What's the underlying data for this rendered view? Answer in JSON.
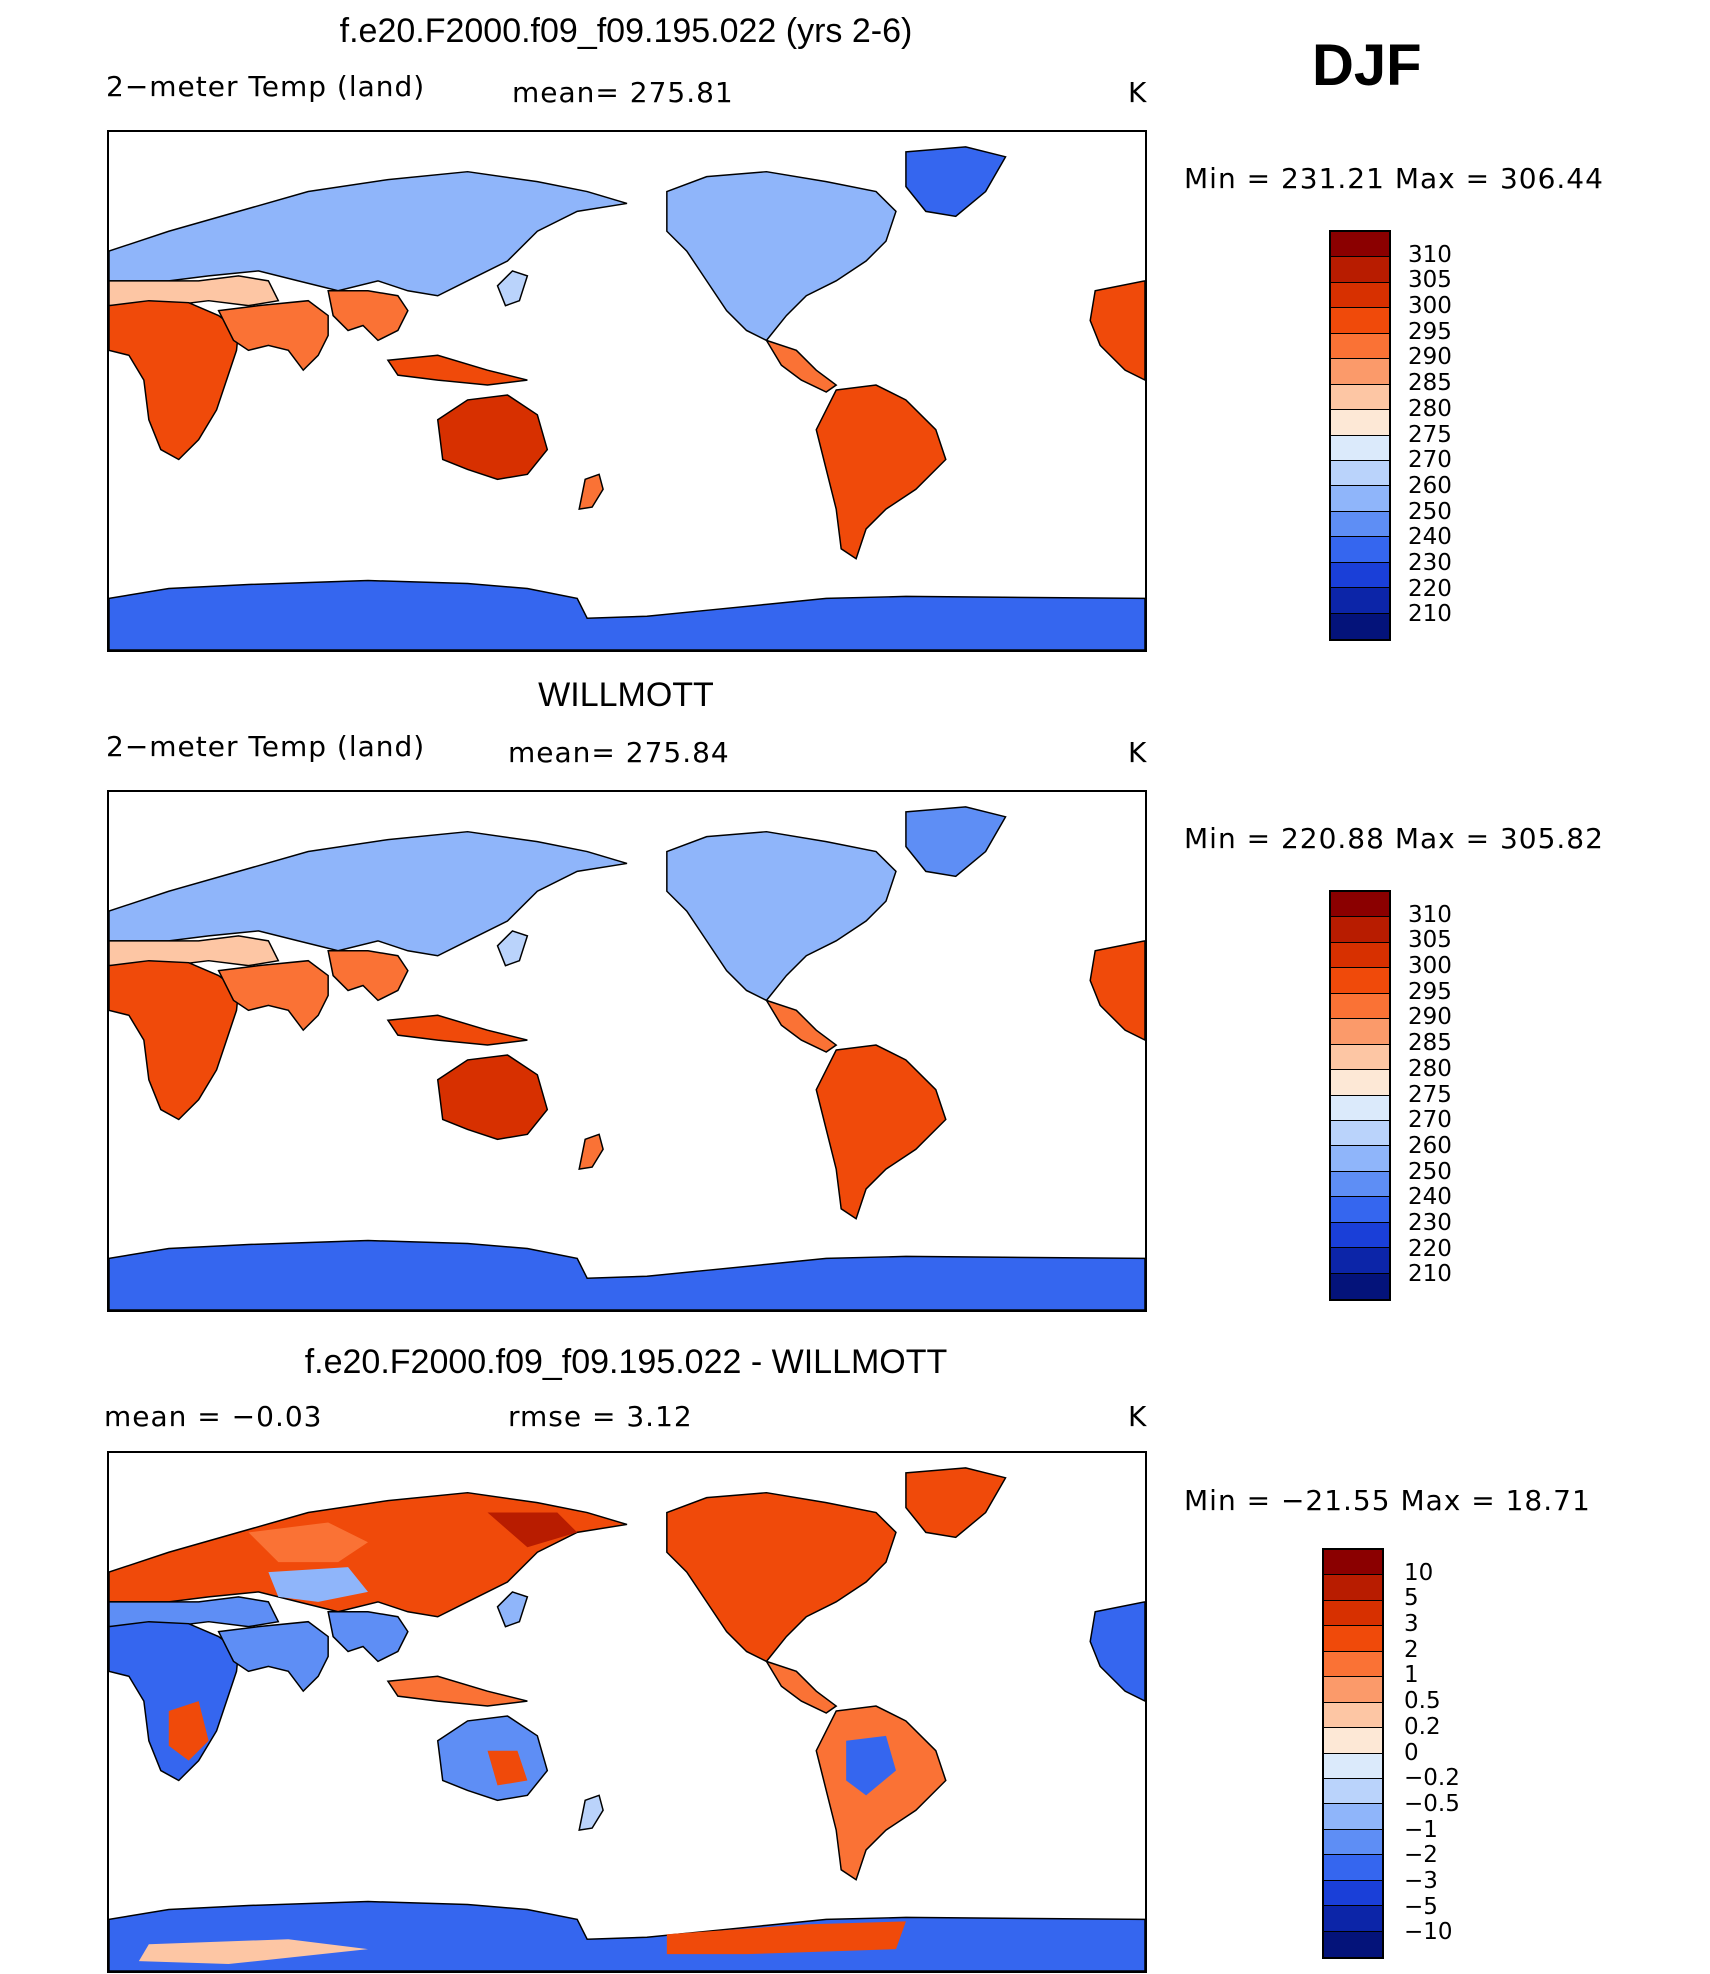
{
  "season": "DJF",
  "panels": [
    {
      "title": "f.e20.F2000.f09_f09.195.022 (yrs 2-6)",
      "left_label": "2−meter Temp (land)",
      "mid_label": "mean= 275.81",
      "unit": "K",
      "minmax": "Min  =  231.21  Max  =  306.44",
      "colorbar_labels": [
        "310",
        "305",
        "300",
        "295",
        "290",
        "285",
        "280",
        "275",
        "270",
        "260",
        "250",
        "240",
        "230",
        "220",
        "210"
      ],
      "colorbar_colors": [
        "#8b0000",
        "#b81c00",
        "#d73000",
        "#f04a0a",
        "#fa7235",
        "#fb9a6a",
        "#fdc6a4",
        "#fde8d6",
        "#dbeafb",
        "#bad3fb",
        "#8fb5fa",
        "#5e8ef5",
        "#3566ef",
        "#1a3fd8",
        "#0c25a8",
        "#04137a"
      ],
      "ocean_note": ""
    },
    {
      "title": "WILLMOTT",
      "left_label": "2−meter Temp (land)",
      "mid_label": "mean= 275.84",
      "unit": "K",
      "minmax": "Min  =  220.88  Max  =  305.82",
      "colorbar_labels": [
        "310",
        "305",
        "300",
        "295",
        "290",
        "285",
        "280",
        "275",
        "270",
        "260",
        "250",
        "240",
        "230",
        "220",
        "210"
      ],
      "colorbar_colors": [
        "#8b0000",
        "#b81c00",
        "#d73000",
        "#f04a0a",
        "#fa7235",
        "#fb9a6a",
        "#fdc6a4",
        "#fde8d6",
        "#dbeafb",
        "#bad3fb",
        "#8fb5fa",
        "#5e8ef5",
        "#3566ef",
        "#1a3fd8",
        "#0c25a8",
        "#04137a"
      ]
    },
    {
      "title": "f.e20.F2000.f09_f09.195.022 - WILLMOTT",
      "left_label": "mean  =     −0.03",
      "mid_label": "rmse  =      3.12",
      "unit": "K",
      "minmax": "Min  =  −21.55  Max  =    18.71",
      "colorbar_labels": [
        "10",
        "5",
        "3",
        "2",
        "1",
        "0.5",
        "0.2",
        "0",
        "−0.2",
        "−0.5",
        "−1",
        "−2",
        "−3",
        "−5",
        "−10"
      ],
      "colorbar_colors": [
        "#8b0000",
        "#b81c00",
        "#d73000",
        "#f04a0a",
        "#fa7235",
        "#fb9a6a",
        "#fdc6a4",
        "#fde8d6",
        "#dbeafb",
        "#bad3fb",
        "#8fb5fa",
        "#5e8ef5",
        "#3566ef",
        "#1a3fd8",
        "#0c25a8",
        "#04137a"
      ]
    }
  ]
}
